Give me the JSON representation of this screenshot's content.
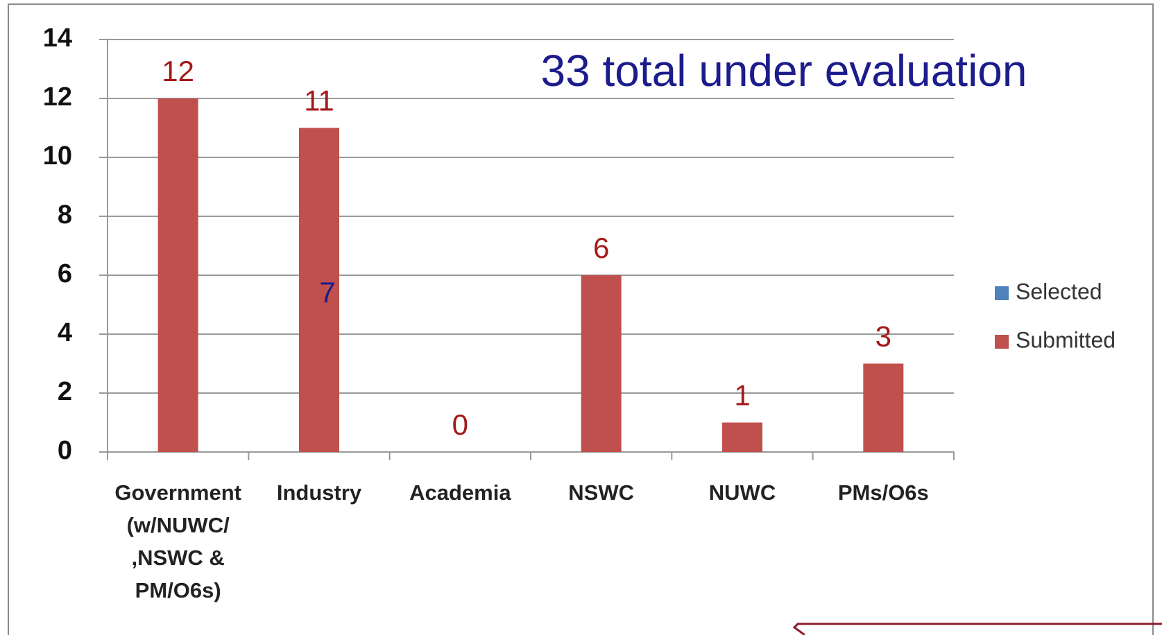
{
  "chart_data": {
    "type": "bar",
    "annotations": [
      "33 total under evaluation",
      "7"
    ],
    "categories": [
      "Government\n(w/NUWC/\n,NSWC &\nPM/O6s)",
      "Industry",
      "Academia",
      "NSWC",
      "NUWC",
      "PMs/O6s"
    ],
    "series": [
      {
        "name": "Selected",
        "color": "#4f81bd",
        "values": [
          null,
          null,
          null,
          null,
          null,
          null
        ]
      },
      {
        "name": "Submitted",
        "color": "#c0504d",
        "values": [
          12,
          11,
          0,
          6,
          1,
          3
        ]
      }
    ],
    "ylim": [
      0,
      14
    ],
    "yticks": [
      0,
      2,
      4,
      6,
      8,
      10,
      12,
      14
    ],
    "grid": true,
    "legend": "right"
  }
}
